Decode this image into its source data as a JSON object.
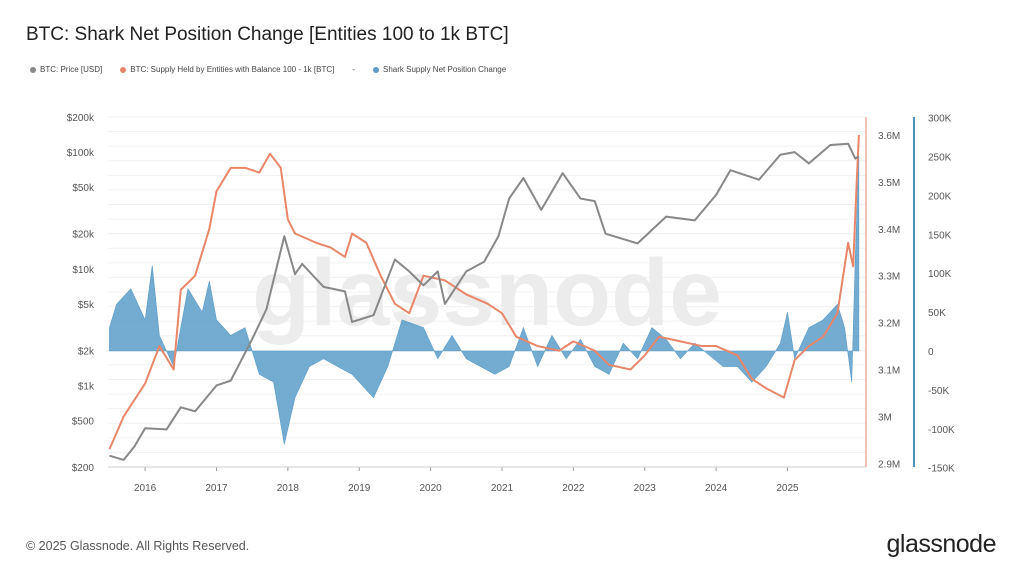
{
  "title": "BTC: Shark Net Position Change [Entities 100 to 1k BTC]",
  "footer": "© 2025 Glassnode. All Rights Reserved.",
  "brand": "glassnode",
  "watermark": "glassnode",
  "chart_data": {
    "type": "line",
    "title": "BTC: Shark Net Position Change [Entities 100 to 1k BTC]",
    "legend_placement": "top-left",
    "grid": true,
    "x_ticks": [
      "2016",
      "2017",
      "2018",
      "2019",
      "2020",
      "2021",
      "2022",
      "2023",
      "2024",
      "2025"
    ],
    "x_range": [
      2015.48,
      2026.1
    ],
    "axes": {
      "price": {
        "scale": "log",
        "range": [
          200,
          200000
        ],
        "ticks": [
          "$200",
          "$500",
          "$1k",
          "$2k",
          "$5k",
          "$10k",
          "$20k",
          "$50k",
          "$100k",
          "$200k"
        ],
        "tick_values": [
          200,
          500,
          1000,
          2000,
          5000,
          10000,
          20000,
          50000,
          100000,
          200000
        ]
      },
      "supply": {
        "scale": "linear",
        "range": [
          2.89,
          3.63
        ],
        "ticks": [
          "2.9M",
          "3M",
          "3.1M",
          "3.2M",
          "3.3M",
          "3.4M",
          "3.5M",
          "3.6M"
        ],
        "tick_values": [
          2.9,
          3.0,
          3.1,
          3.2,
          3.3,
          3.4,
          3.5,
          3.6
        ],
        "color": "#7a9bb0"
      },
      "netchange": {
        "scale": "linear",
        "range": [
          -150,
          300
        ],
        "ticks": [
          "-150K",
          "-100K",
          "-50K",
          "0",
          "50K",
          "100K",
          "150K",
          "200K",
          "250K",
          "300K"
        ],
        "tick_values": [
          -150,
          -100,
          -50,
          0,
          50,
          100,
          150,
          200,
          250,
          300
        ],
        "color": "#4f90b8"
      }
    },
    "series": [
      {
        "name": "BTC: Price [USD]",
        "axis": "price",
        "color": "#888888",
        "points": [
          [
            2015.5,
            250
          ],
          [
            2015.7,
            230
          ],
          [
            2015.85,
            300
          ],
          [
            2016.0,
            430
          ],
          [
            2016.3,
            420
          ],
          [
            2016.5,
            650
          ],
          [
            2016.7,
            600
          ],
          [
            2017.0,
            1000
          ],
          [
            2017.2,
            1100
          ],
          [
            2017.5,
            2500
          ],
          [
            2017.7,
            4500
          ],
          [
            2017.95,
            19000
          ],
          [
            2018.1,
            9000
          ],
          [
            2018.2,
            11000
          ],
          [
            2018.5,
            7000
          ],
          [
            2018.8,
            6400
          ],
          [
            2018.9,
            3500
          ],
          [
            2019.2,
            4000
          ],
          [
            2019.5,
            12000
          ],
          [
            2019.7,
            9500
          ],
          [
            2019.9,
            7200
          ],
          [
            2020.1,
            9500
          ],
          [
            2020.2,
            5000
          ],
          [
            2020.5,
            9500
          ],
          [
            2020.75,
            11500
          ],
          [
            2020.95,
            19000
          ],
          [
            2021.1,
            40000
          ],
          [
            2021.3,
            60000
          ],
          [
            2021.55,
            32000
          ],
          [
            2021.85,
            66000
          ],
          [
            2022.1,
            40000
          ],
          [
            2022.3,
            38000
          ],
          [
            2022.45,
            20000
          ],
          [
            2022.9,
            16500
          ],
          [
            2023.3,
            28000
          ],
          [
            2023.7,
            26000
          ],
          [
            2024.0,
            43000
          ],
          [
            2024.2,
            70000
          ],
          [
            2024.6,
            58000
          ],
          [
            2024.9,
            95000
          ],
          [
            2025.1,
            100000
          ],
          [
            2025.3,
            80000
          ],
          [
            2025.6,
            115000
          ],
          [
            2025.85,
            118000
          ],
          [
            2025.95,
            88000
          ],
          [
            2026.0,
            92000
          ]
        ]
      },
      {
        "name": "BTC: Supply Held by Entities with Balance 100 - 1k [BTC]",
        "axis": "supply",
        "color": "#e8866a",
        "points": [
          [
            2015.5,
            2.93
          ],
          [
            2015.7,
            3.0
          ],
          [
            2016.0,
            3.07
          ],
          [
            2016.2,
            3.15
          ],
          [
            2016.4,
            3.1
          ],
          [
            2016.5,
            3.27
          ],
          [
            2016.7,
            3.3
          ],
          [
            2016.9,
            3.4
          ],
          [
            2017.0,
            3.48
          ],
          [
            2017.2,
            3.53
          ],
          [
            2017.4,
            3.53
          ],
          [
            2017.6,
            3.52
          ],
          [
            2017.75,
            3.56
          ],
          [
            2017.9,
            3.53
          ],
          [
            2018.0,
            3.42
          ],
          [
            2018.1,
            3.39
          ],
          [
            2018.4,
            3.37
          ],
          [
            2018.6,
            3.36
          ],
          [
            2018.8,
            3.34
          ],
          [
            2018.9,
            3.39
          ],
          [
            2019.1,
            3.37
          ],
          [
            2019.3,
            3.3
          ],
          [
            2019.5,
            3.24
          ],
          [
            2019.7,
            3.22
          ],
          [
            2019.9,
            3.3
          ],
          [
            2020.2,
            3.29
          ],
          [
            2020.5,
            3.26
          ],
          [
            2020.8,
            3.24
          ],
          [
            2021.0,
            3.22
          ],
          [
            2021.2,
            3.17
          ],
          [
            2021.5,
            3.15
          ],
          [
            2021.8,
            3.14
          ],
          [
            2022.0,
            3.16
          ],
          [
            2022.3,
            3.14
          ],
          [
            2022.5,
            3.11
          ],
          [
            2022.8,
            3.1
          ],
          [
            2023.0,
            3.13
          ],
          [
            2023.2,
            3.17
          ],
          [
            2023.5,
            3.16
          ],
          [
            2023.8,
            3.15
          ],
          [
            2024.0,
            3.15
          ],
          [
            2024.3,
            3.13
          ],
          [
            2024.5,
            3.08
          ],
          [
            2024.7,
            3.06
          ],
          [
            2024.95,
            3.04
          ],
          [
            2025.1,
            3.12
          ],
          [
            2025.3,
            3.15
          ],
          [
            2025.5,
            3.17
          ],
          [
            2025.7,
            3.22
          ],
          [
            2025.85,
            3.37
          ],
          [
            2025.92,
            3.32
          ],
          [
            2025.97,
            3.5
          ],
          [
            2026.0,
            3.6
          ]
        ]
      },
      {
        "name": "Shark Supply Net Position Change",
        "axis": "netchange",
        "color": "#5b9cc9",
        "type": "area",
        "points": [
          [
            2015.5,
            30
          ],
          [
            2015.6,
            60
          ],
          [
            2015.8,
            80
          ],
          [
            2016.0,
            40
          ],
          [
            2016.1,
            110
          ],
          [
            2016.2,
            20
          ],
          [
            2016.4,
            -20
          ],
          [
            2016.6,
            80
          ],
          [
            2016.8,
            50
          ],
          [
            2016.9,
            90
          ],
          [
            2017.0,
            40
          ],
          [
            2017.2,
            20
          ],
          [
            2017.4,
            30
          ],
          [
            2017.6,
            -30
          ],
          [
            2017.8,
            -40
          ],
          [
            2017.95,
            -120
          ],
          [
            2018.1,
            -60
          ],
          [
            2018.3,
            -20
          ],
          [
            2018.5,
            -10
          ],
          [
            2018.7,
            -20
          ],
          [
            2018.9,
            -30
          ],
          [
            2019.2,
            -60
          ],
          [
            2019.4,
            -20
          ],
          [
            2019.6,
            40
          ],
          [
            2019.9,
            30
          ],
          [
            2020.1,
            -10
          ],
          [
            2020.3,
            20
          ],
          [
            2020.5,
            -10
          ],
          [
            2020.7,
            -20
          ],
          [
            2020.9,
            -30
          ],
          [
            2021.1,
            -20
          ],
          [
            2021.3,
            30
          ],
          [
            2021.5,
            -20
          ],
          [
            2021.7,
            20
          ],
          [
            2021.9,
            -10
          ],
          [
            2022.1,
            15
          ],
          [
            2022.3,
            -20
          ],
          [
            2022.5,
            -30
          ],
          [
            2022.7,
            10
          ],
          [
            2022.9,
            -10
          ],
          [
            2023.1,
            30
          ],
          [
            2023.3,
            15
          ],
          [
            2023.5,
            -10
          ],
          [
            2023.7,
            10
          ],
          [
            2023.9,
            -5
          ],
          [
            2024.1,
            -20
          ],
          [
            2024.3,
            -20
          ],
          [
            2024.5,
            -40
          ],
          [
            2024.7,
            -20
          ],
          [
            2024.9,
            10
          ],
          [
            2025.0,
            50
          ],
          [
            2025.1,
            -10
          ],
          [
            2025.3,
            30
          ],
          [
            2025.5,
            40
          ],
          [
            2025.7,
            60
          ],
          [
            2025.8,
            30
          ],
          [
            2025.9,
            -40
          ],
          [
            2025.95,
            120
          ],
          [
            2026.0,
            250
          ]
        ]
      }
    ],
    "legend": [
      "BTC: Price [USD]",
      "BTC: Supply Held by Entities with Balance 100 - 1k [BTC]",
      "-",
      "Shark Supply Net Position Change"
    ]
  }
}
